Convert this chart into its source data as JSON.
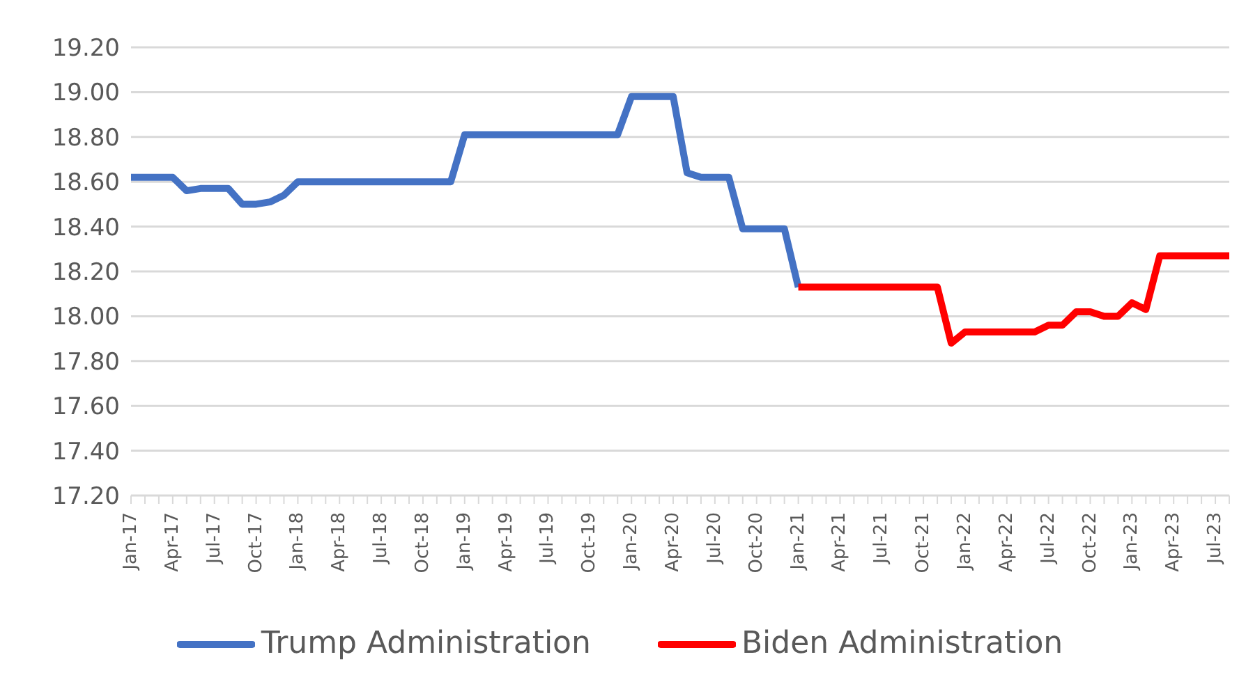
{
  "chart_data": {
    "type": "line",
    "categories": [
      "Jan-17",
      null,
      null,
      "Apr-17",
      null,
      null,
      "Jul-17",
      null,
      null,
      "Oct-17",
      null,
      null,
      "Jan-18",
      null,
      null,
      "Apr-18",
      null,
      null,
      "Jul-18",
      null,
      null,
      "Oct-18",
      null,
      null,
      "Jan-19",
      null,
      null,
      "Apr-19",
      null,
      null,
      "Jul-19",
      null,
      null,
      "Oct-19",
      null,
      null,
      "Jan-20",
      null,
      null,
      "Apr-20",
      null,
      null,
      "Jul-20",
      null,
      null,
      "Oct-20",
      null,
      null,
      "Jan-21",
      null,
      null,
      "Apr-21",
      null,
      null,
      "Jul-21",
      null,
      null,
      "Oct-21",
      null,
      null,
      "Jan-22",
      null,
      null,
      "Apr-22",
      null,
      null,
      "Jul-22",
      null,
      null,
      "Oct-22",
      null,
      null,
      "Jan-23",
      null,
      null,
      "Apr-23",
      null,
      null,
      "Jul-23",
      null
    ],
    "series": [
      {
        "name": "Trump Administration",
        "color": "#4472c4",
        "values": [
          18.62,
          18.62,
          18.62,
          18.62,
          18.56,
          18.57,
          18.57,
          18.57,
          18.5,
          18.5,
          18.51,
          18.54,
          18.6,
          18.6,
          18.6,
          18.6,
          18.6,
          18.6,
          18.6,
          18.6,
          18.6,
          18.6,
          18.6,
          18.6,
          18.81,
          18.81,
          18.81,
          18.81,
          18.81,
          18.81,
          18.81,
          18.81,
          18.81,
          18.81,
          18.81,
          18.81,
          18.98,
          18.98,
          18.98,
          18.98,
          18.64,
          18.62,
          18.62,
          18.62,
          18.39,
          18.39,
          18.39,
          18.39,
          18.13,
          null,
          null,
          null,
          null,
          null,
          null,
          null,
          null,
          null,
          null,
          null,
          null,
          null,
          null,
          null,
          null,
          null,
          null,
          null,
          null,
          null,
          null,
          null,
          null,
          null,
          null,
          null,
          null,
          null,
          null,
          null
        ]
      },
      {
        "name": "Biden Administration",
        "color": "#ff0000",
        "values": [
          null,
          null,
          null,
          null,
          null,
          null,
          null,
          null,
          null,
          null,
          null,
          null,
          null,
          null,
          null,
          null,
          null,
          null,
          null,
          null,
          null,
          null,
          null,
          null,
          null,
          null,
          null,
          null,
          null,
          null,
          null,
          null,
          null,
          null,
          null,
          null,
          null,
          null,
          null,
          null,
          null,
          null,
          null,
          null,
          null,
          null,
          null,
          null,
          18.13,
          18.13,
          18.13,
          18.13,
          18.13,
          18.13,
          18.13,
          18.13,
          18.13,
          18.13,
          18.13,
          17.88,
          17.93,
          17.93,
          17.93,
          17.93,
          17.93,
          17.93,
          17.96,
          17.96,
          18.02,
          18.02,
          18.0,
          18.0,
          18.06,
          18.03,
          18.27,
          18.27,
          18.27,
          18.27,
          18.27,
          18.27
        ]
      }
    ],
    "ylim": [
      17.2,
      19.2
    ],
    "yticks": [
      {
        "value": 17.2,
        "label": "17.20"
      },
      {
        "value": 17.4,
        "label": "17.40"
      },
      {
        "value": 17.6,
        "label": "17.60"
      },
      {
        "value": 17.8,
        "label": "17.80"
      },
      {
        "value": 18.0,
        "label": "18.00"
      },
      {
        "value": 18.2,
        "label": "18.20"
      },
      {
        "value": 18.4,
        "label": "18.40"
      },
      {
        "value": 18.6,
        "label": "18.60"
      },
      {
        "value": 18.8,
        "label": "18.80"
      },
      {
        "value": 19.0,
        "label": "19.00"
      },
      {
        "value": 19.2,
        "label": "19.20"
      }
    ],
    "grid": "y",
    "legend": "bottom",
    "marker": "none",
    "line_style": "solid"
  }
}
